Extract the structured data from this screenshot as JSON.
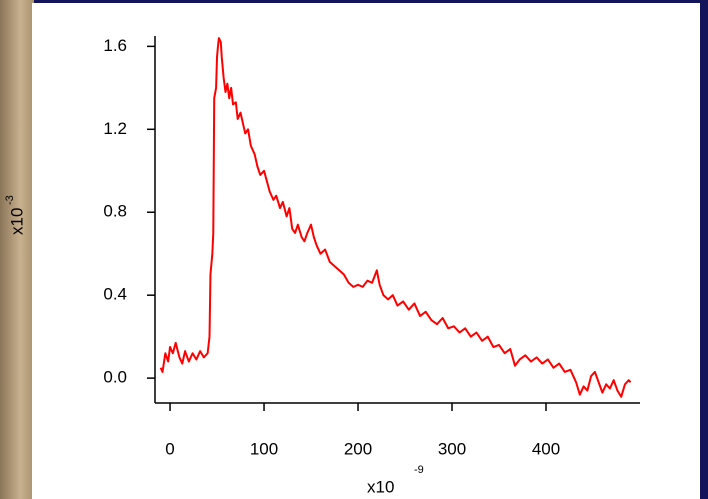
{
  "chart_data": {
    "type": "line",
    "x_label": "x10",
    "x_label_exponent": "-9",
    "y_label": "x10",
    "y_label_exponent": "-3",
    "xlim": [
      -16,
      500
    ],
    "ylim": [
      -0.12,
      1.65
    ],
    "xticks": [
      0,
      100,
      200,
      300,
      400
    ],
    "yticks": [
      {
        "value": 0,
        "label": "0.0"
      },
      0.4,
      0.8,
      1.2,
      1.6
    ],
    "series": [
      {
        "color": "#ff0000",
        "x": [
          -10,
          -8,
          -5,
          -2,
          0,
          3,
          6,
          10,
          13,
          16,
          20,
          24,
          28,
          32,
          36,
          40,
          42,
          43,
          45,
          46,
          47,
          49,
          50,
          51,
          52,
          54,
          55,
          57,
          59,
          61,
          63,
          65,
          67,
          70,
          72,
          75,
          78,
          80,
          83,
          86,
          90,
          93,
          96,
          100,
          103,
          106,
          110,
          113,
          117,
          120,
          124,
          127,
          130,
          133,
          136,
          140,
          143,
          146,
          150,
          153,
          156,
          160,
          165,
          170,
          175,
          180,
          185,
          190,
          195,
          200,
          205,
          210,
          215,
          220,
          223,
          227,
          232,
          237,
          242,
          248,
          254,
          260,
          266,
          272,
          278,
          284,
          290,
          296,
          302,
          308,
          314,
          320,
          326,
          332,
          338,
          344,
          350,
          356,
          362,
          367,
          372,
          378,
          384,
          390,
          396,
          402,
          408,
          414,
          420,
          426,
          432,
          436,
          440,
          444,
          448,
          452,
          456,
          460,
          464,
          468,
          472,
          476,
          480,
          484,
          488,
          490
        ],
        "values": [
          0.05,
          0.03,
          0.12,
          0.08,
          0.15,
          0.12,
          0.17,
          0.1,
          0.07,
          0.13,
          0.08,
          0.12,
          0.09,
          0.13,
          0.1,
          0.12,
          0.2,
          0.5,
          0.6,
          0.7,
          1.35,
          1.4,
          1.55,
          1.6,
          1.64,
          1.62,
          1.55,
          1.45,
          1.38,
          1.42,
          1.35,
          1.4,
          1.32,
          1.33,
          1.25,
          1.28,
          1.22,
          1.18,
          1.2,
          1.12,
          1.08,
          1.02,
          0.98,
          1.0,
          0.95,
          0.9,
          0.86,
          0.88,
          0.82,
          0.85,
          0.78,
          0.82,
          0.72,
          0.7,
          0.74,
          0.68,
          0.66,
          0.7,
          0.74,
          0.68,
          0.64,
          0.6,
          0.62,
          0.56,
          0.54,
          0.52,
          0.5,
          0.46,
          0.44,
          0.45,
          0.44,
          0.47,
          0.46,
          0.52,
          0.45,
          0.4,
          0.38,
          0.4,
          0.35,
          0.37,
          0.33,
          0.36,
          0.3,
          0.32,
          0.28,
          0.26,
          0.29,
          0.24,
          0.25,
          0.22,
          0.24,
          0.2,
          0.22,
          0.18,
          0.2,
          0.15,
          0.16,
          0.12,
          0.14,
          0.06,
          0.09,
          0.11,
          0.08,
          0.1,
          0.07,
          0.09,
          0.05,
          0.07,
          0.03,
          0.04,
          -0.02,
          -0.08,
          -0.04,
          -0.06,
          0.01,
          0.03,
          -0.02,
          -0.07,
          -0.03,
          -0.05,
          -0.01,
          -0.06,
          -0.09,
          -0.03,
          -0.01,
          -0.02
        ]
      }
    ]
  }
}
